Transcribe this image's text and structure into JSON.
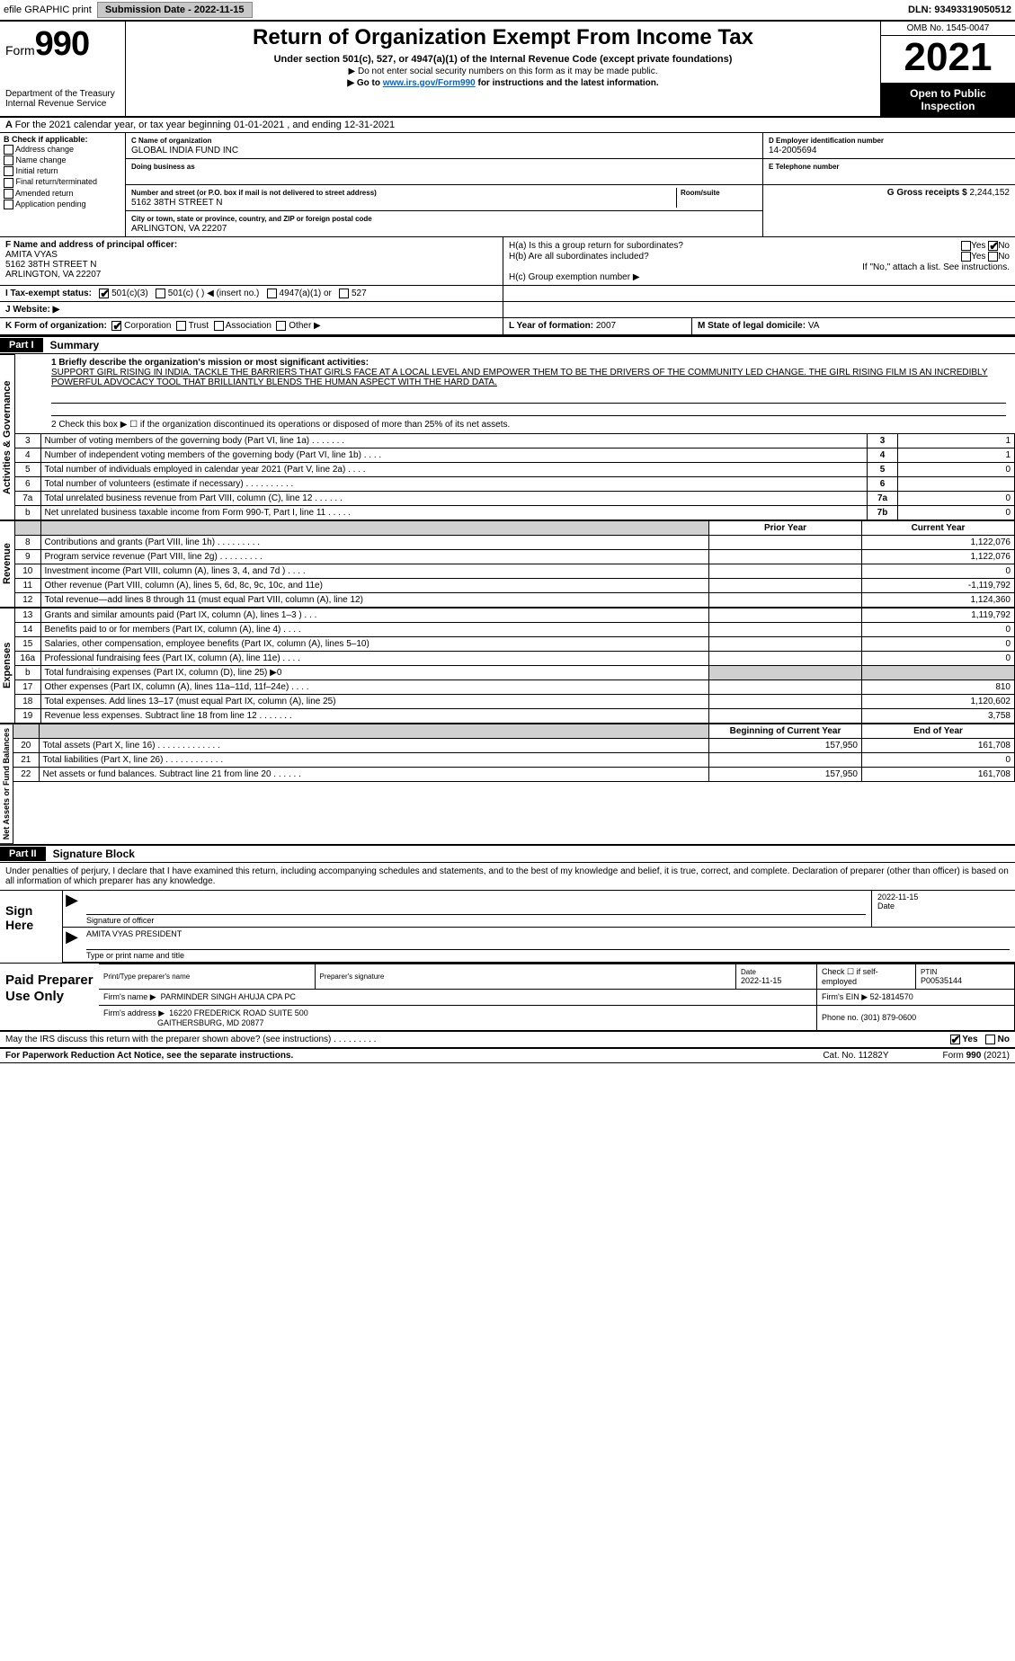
{
  "topbar": {
    "efile": "efile GRAPHIC print",
    "submission_label": "Submission Date - 2022-11-15",
    "dln": "DLN: 93493319050512"
  },
  "header": {
    "form_label": "Form",
    "form_number": "990",
    "dept": "Department of the Treasury",
    "irs": "Internal Revenue Service",
    "title": "Return of Organization Exempt From Income Tax",
    "subtitle": "Under section 501(c), 527, or 4947(a)(1) of the Internal Revenue Code (except private foundations)",
    "note_ssn": "▶ Do not enter social security numbers on this form as it may be made public.",
    "note_goto_pre": "▶ Go to ",
    "note_goto_link": "www.irs.gov/Form990",
    "note_goto_post": " for instructions and the latest information.",
    "omb": "OMB No. 1545-0047",
    "tax_year": "2021",
    "open_public": "Open to Public Inspection"
  },
  "line_a": "For the 2021 calendar year, or tax year beginning 01-01-2021    , and ending 12-31-2021",
  "col_b": {
    "heading": "B Check if applicable:",
    "items": [
      "Address change",
      "Name change",
      "Initial return",
      "Final return/terminated",
      "Amended return",
      "Application pending"
    ]
  },
  "col_c": {
    "c_lbl": "C Name of organization",
    "c_val": "GLOBAL INDIA FUND INC",
    "dba_lbl": "Doing business as",
    "dba_val": "",
    "addr_lbl": "Number and street (or P.O. box if mail is not delivered to street address)",
    "room_lbl": "Room/suite",
    "addr_val": "5162 38TH STREET N",
    "city_lbl": "City or town, state or province, country, and ZIP or foreign postal code",
    "city_val": "ARLINGTON, VA  22207"
  },
  "col_deg": {
    "d_lbl": "D Employer identification number",
    "d_val": "14-2005694",
    "e_lbl": "E Telephone number",
    "e_val": "",
    "g_lbl": "G Gross receipts $",
    "g_val": "2,244,152"
  },
  "f": {
    "lbl": "F Name and address of principal officer:",
    "name": "AMITA VYAS",
    "addr1": "5162 38TH STREET N",
    "addr2": "ARLINGTON, VA  22207"
  },
  "h": {
    "a_lbl": "H(a)  Is this a group return for subordinates?",
    "a_yes": "Yes",
    "a_no": "No",
    "b_lbl": "H(b)  Are all subordinates included?",
    "b_yes": "Yes",
    "b_no": "No",
    "b_note": "If \"No,\" attach a list. See instructions.",
    "c_lbl": "H(c)  Group exemption number ▶"
  },
  "i": {
    "lbl": "I  Tax-exempt status:",
    "opts": [
      "501(c)(3)",
      "501(c) (   ) ◀ (insert no.)",
      "4947(a)(1) or",
      "527"
    ]
  },
  "j": {
    "lbl": "J  Website: ▶",
    "val": ""
  },
  "k": {
    "lbl": "K Form of organization:",
    "opts": [
      "Corporation",
      "Trust",
      "Association",
      "Other ▶"
    ]
  },
  "l": {
    "lbl": "L Year of formation:",
    "val": "2007"
  },
  "m": {
    "lbl": "M State of legal domicile:",
    "val": "VA"
  },
  "part1": {
    "tab": "Part I",
    "title": "Summary",
    "line1_lbl": "1  Briefly describe the organization's mission or most significant activities:",
    "mission": "SUPPORT GIRL RISING IN INDIA. TACKLE THE BARRIERS THAT GIRLS FACE AT A LOCAL LEVEL AND EMPOWER THEM TO BE THE DRIVERS OF THE COMMUNITY LED CHANGE. THE GIRL RISING FILM IS AN INCREDIBLY POWERFUL ADVOCACY TOOL THAT BRILLIANTLY BLENDS THE HUMAN ASPECT WITH THE HARD DATA.",
    "line2": "2  Check this box ▶ ☐  if the organization discontinued its operations or disposed of more than 25% of its net assets.",
    "rows_top": [
      {
        "n": "3",
        "d": "Number of voting members of the governing body (Part VI, line 1a)   .    .    .    .    .    .    .",
        "k": "3",
        "v": "1"
      },
      {
        "n": "4",
        "d": "Number of independent voting members of the governing body (Part VI, line 1b)   .    .    .    .",
        "k": "4",
        "v": "1"
      },
      {
        "n": "5",
        "d": "Total number of individuals employed in calendar year 2021 (Part V, line 2a)   .    .    .    .",
        "k": "5",
        "v": "0"
      },
      {
        "n": "6",
        "d": "Total number of volunteers (estimate if necessary)   .    .    .    .    .    .    .    .    .    .",
        "k": "6",
        "v": ""
      },
      {
        "n": "7a",
        "d": "Total unrelated business revenue from Part VIII, column (C), line 12   .    .    .    .    .    .",
        "k": "7a",
        "v": "0"
      },
      {
        "n": "b",
        "d": "Net unrelated business taxable income from Form 990-T, Part I, line 11   .    .    .    .    .",
        "k": "7b",
        "v": "0"
      }
    ],
    "col_prior": "Prior Year",
    "col_current": "Current Year",
    "rows_rev": [
      {
        "n": "8",
        "d": "Contributions and grants (Part VIII, line 1h)   .    .    .    .    .    .    .    .    .",
        "p": "",
        "c": "1,122,076"
      },
      {
        "n": "9",
        "d": "Program service revenue (Part VIII, line 2g)   .    .    .    .    .    .    .    .    .",
        "p": "",
        "c": "1,122,076"
      },
      {
        "n": "10",
        "d": "Investment income (Part VIII, column (A), lines 3, 4, and 7d )   .    .    .    .",
        "p": "",
        "c": "0"
      },
      {
        "n": "11",
        "d": "Other revenue (Part VIII, column (A), lines 5, 6d, 8c, 9c, 10c, and 11e)",
        "p": "",
        "c": "-1,119,792"
      },
      {
        "n": "12",
        "d": "Total revenue—add lines 8 through 11 (must equal Part VIII, column (A), line 12)",
        "p": "",
        "c": "1,124,360"
      }
    ],
    "rows_exp": [
      {
        "n": "13",
        "d": "Grants and similar amounts paid (Part IX, column (A), lines 1–3 )   .    .    .",
        "p": "",
        "c": "1,119,792"
      },
      {
        "n": "14",
        "d": "Benefits paid to or for members (Part IX, column (A), line 4)   .    .    .    .",
        "p": "",
        "c": "0"
      },
      {
        "n": "15",
        "d": "Salaries, other compensation, employee benefits (Part IX, column (A), lines 5–10)",
        "p": "",
        "c": "0"
      },
      {
        "n": "16a",
        "d": "Professional fundraising fees (Part IX, column (A), line 11e)   .    .    .    .",
        "p": "",
        "c": "0"
      },
      {
        "n": "b",
        "d": "Total fundraising expenses (Part IX, column (D), line 25) ▶0",
        "p": "SHADE",
        "c": "SHADE"
      },
      {
        "n": "17",
        "d": "Other expenses (Part IX, column (A), lines 11a–11d, 11f–24e)   .    .    .    .",
        "p": "",
        "c": "810"
      },
      {
        "n": "18",
        "d": "Total expenses. Add lines 13–17 (must equal Part IX, column (A), line 25)",
        "p": "",
        "c": "1,120,602"
      },
      {
        "n": "19",
        "d": "Revenue less expenses. Subtract line 18 from line 12   .    .    .    .    .    .    .",
        "p": "",
        "c": "3,758"
      }
    ],
    "col_boy": "Beginning of Current Year",
    "col_eoy": "End of Year",
    "rows_net": [
      {
        "n": "20",
        "d": "Total assets (Part X, line 16)   .    .    .    .    .    .    .    .    .    .    .    .    .",
        "p": "157,950",
        "c": "161,708"
      },
      {
        "n": "21",
        "d": "Total liabilities (Part X, line 26)   .    .    .    .    .    .    .    .    .    .    .    .",
        "p": "",
        "c": "0"
      },
      {
        "n": "22",
        "d": "Net assets or fund balances. Subtract line 21 from line 20   .    .    .    .    .    .",
        "p": "157,950",
        "c": "161,708"
      }
    ],
    "vlabels": {
      "ag": "Activities & Governance",
      "rev": "Revenue",
      "exp": "Expenses",
      "net": "Net Assets or Fund Balances"
    }
  },
  "part2": {
    "tab": "Part II",
    "title": "Signature Block",
    "para": "Under penalties of perjury, I declare that I have examined this return, including accompanying schedules and statements, and to the best of my knowledge and belief, it is true, correct, and complete. Declaration of preparer (other than officer) is based on all information of which preparer has any knowledge."
  },
  "sign": {
    "label": "Sign Here",
    "sig_lbl": "Signature of officer",
    "date_val": "2022-11-15",
    "date_lbl": "Date",
    "name_val": "AMITA VYAS  PRESIDENT",
    "name_lbl": "Type or print name and title"
  },
  "prep": {
    "label": "Paid Preparer Use Only",
    "r1": {
      "c1_lbl": "Print/Type preparer's name",
      "c1_val": "",
      "c2_lbl": "Preparer's signature",
      "c2_val": "",
      "c3_lbl": "Date",
      "c3_val": "2022-11-15",
      "c4_lbl": "Check ☐ if self-employed",
      "c5_lbl": "PTIN",
      "c5_val": "P00535144"
    },
    "r2": {
      "lbl": "Firm's name    ▶",
      "val": "PARMINDER SINGH AHUJA CPA PC",
      "ein_lbl": "Firm's EIN ▶",
      "ein_val": "52-1814570"
    },
    "r3": {
      "lbl": "Firm's address ▶",
      "val1": "16220 FREDERICK ROAD SUITE 500",
      "val2": "GAITHERSBURG, MD  20877",
      "ph_lbl": "Phone no.",
      "ph_val": "(301) 879-0600"
    }
  },
  "discuss": {
    "q": "May the IRS discuss this return with the preparer shown above? (see instructions)   .    .    .    .    .    .    .    .    .",
    "yes": "Yes",
    "no": "No"
  },
  "footer": {
    "left": "For Paperwork Reduction Act Notice, see the separate instructions.",
    "mid": "Cat. No. 11282Y",
    "right": "Form 990 (2021)"
  },
  "style": {
    "colors": {
      "link": "#0066cc",
      "header_black": "#000000",
      "shade": "#d0d0d0",
      "button_bg": "#c8c8c8"
    },
    "fonts": {
      "base_pt": 10,
      "title_pt": 24,
      "year_pt": 44,
      "form_num_pt": 38
    }
  }
}
